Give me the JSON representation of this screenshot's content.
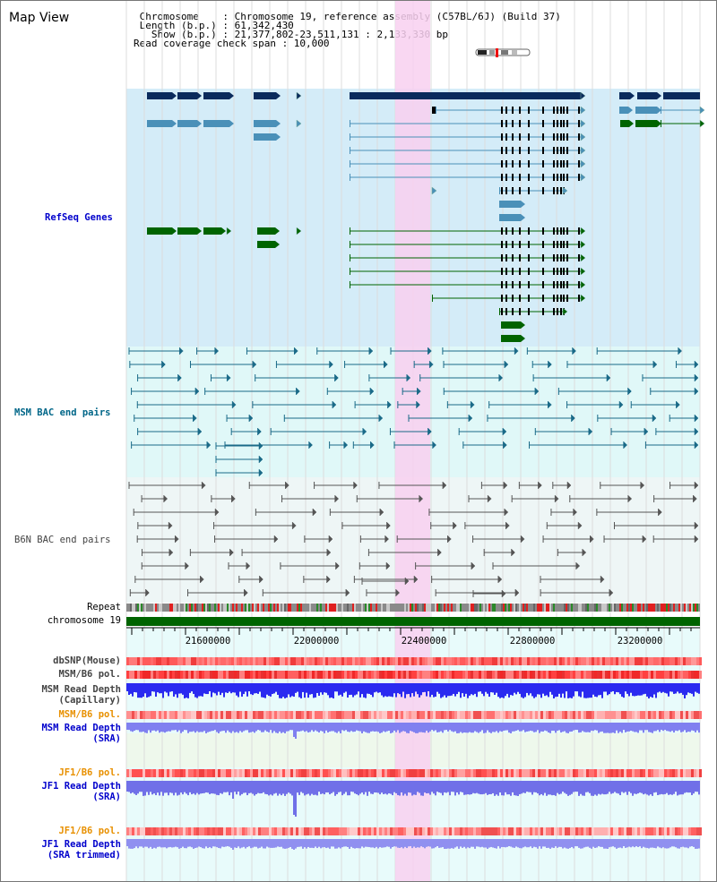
{
  "title": "Map View",
  "info": {
    "chromosome_line": " Chromosome    : Chromosome 19, reference assembly (C57BL/6J) (Build 37)",
    "length_line": " Length (b.p.) : 61,342,430",
    "show_line": "   Show (b.p.) : 21,377,802-23,511,131 : 2,133,330 bp",
    "coverage_line": "Read coverage check span : 10,000"
  },
  "tracks": {
    "refseq": {
      "label": "RefSeq Genes",
      "color": "#0000cc"
    },
    "msm_bac": {
      "label": "MSM BAC end pairs",
      "color": "#006688"
    },
    "b6n_bac": {
      "label": "B6N BAC end pairs",
      "color": "#444444"
    },
    "repeat": {
      "label": "Repeat"
    },
    "chromosome": {
      "label": "chromosome 19"
    },
    "dbsnp": {
      "label": "dbSNP(Mouse)"
    },
    "msm_b6_pol": {
      "label": "MSM/B6 pol."
    },
    "msm_depth_cap": {
      "label_1": "MSM Read Depth",
      "label_2": "(Capillary)"
    },
    "msm_b6_pol_sra": {
      "label": "MSM/B6 pol.",
      "color": "#e89000"
    },
    "msm_depth_sra": {
      "label_1": "MSM Read Depth",
      "label_2": "(SRA)",
      "color": "#0000cc"
    },
    "jf1_b6_pol": {
      "label": "JF1/B6 pol.",
      "color": "#e89000"
    },
    "jf1_depth_sra": {
      "label_1": "JF1 Read Depth",
      "label_2": "(SRA)",
      "color": "#0000cc"
    },
    "jf1_b6_pol_trim": {
      "label": "JF1/B6 pol.",
      "color": "#e89000"
    },
    "jf1_depth_trim": {
      "label_1": "JF1 Read Depth",
      "label_2": "(SRA trimmed)",
      "color": "#0000cc"
    }
  },
  "axis": {
    "ticks": [
      "21600000",
      "22000000",
      "22400000",
      "22800000",
      "23200000"
    ]
  },
  "colors": {
    "refseq_bg": "#d4ecf8",
    "bac_bg": "#e0f8f8",
    "b6n_bg": "#eef6f6",
    "highlight": "#f8d0f0",
    "gene_dark": "#0a2a5c",
    "gene_mid": "#4a90b8",
    "gene_green": "#006400",
    "chromosome_bar": "#006400"
  }
}
